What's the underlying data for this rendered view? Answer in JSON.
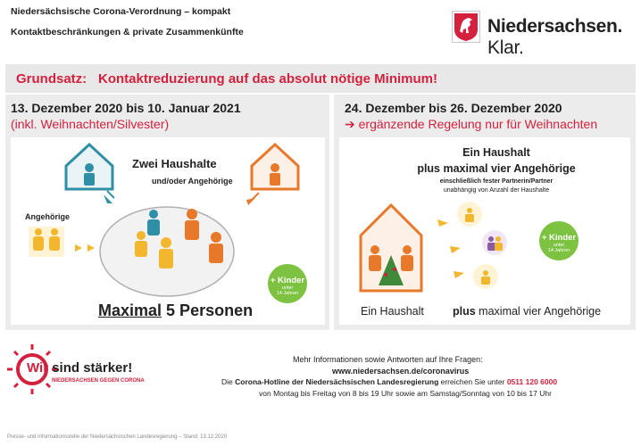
{
  "header": {
    "line1": "Niedersächsische Corona-Verordnung – kompakt",
    "line2": "Kontaktbeschränkungen & private Zusammenkünfte",
    "logo_main": "Niedersachsen.",
    "logo_sub": "Klar."
  },
  "grundsatz": {
    "label": "Grundsatz:",
    "text": "Kontaktreduzierung auf das absolut nötige Minimum!"
  },
  "left": {
    "title": "13. Dezember 2020 bis 10. Januar 2021",
    "subtitle": "(inkl. Weihnachten/Silvester)",
    "zwei": "Zwei Haushalte",
    "undoder": "und/oder Angehörige",
    "angehoerige": "Angehörige",
    "max_underlined": "Maximal",
    "max_rest": " 5 Personen",
    "kids": {
      "plus": "+ Kinder",
      "unter": "unter",
      "jahre": "14 Jahren"
    }
  },
  "right": {
    "title": "24. Dezember bis 26. Dezember 2020",
    "subtitle": "➔ ergänzende Regelung nur für Weihnachten",
    "ein_haushalt": "Ein Haushalt",
    "plus_vier": "plus maximal vier Angehörige",
    "einschl": "einschließlich fester Partnerin/Partner",
    "unabh": "unabhängig von Anzahl der Haushalte",
    "label_haushalt": "Ein Haushalt",
    "label_plus_bold": "plus",
    "label_plus_rest": " maximal vier Angehörige",
    "kids": {
      "plus": "+ Kinder",
      "unter": "unter",
      "jahre": "14 Jahren"
    }
  },
  "footer": {
    "l1": "Mehr Informationen sowie Antworten auf Ihre Fragen:",
    "l2": "www.niedersachsen.de/coronavirus",
    "l3_pre": "Die ",
    "l3_bold": "Corona-Hotline der Niedersächsischen Landesregierung",
    "l3_mid": " erreichen Sie unter ",
    "l3_phone": "0511 120 6000",
    "l4": "von Montag bis Freitag von 8 bis 19 Uhr sowie am Samstag/Sonntag von 10 bis 17 Uhr",
    "wir_w": "Wir",
    "wir_rest": " sind stärker!",
    "wir_sub": "NIEDERSACHSEN GEGEN CORONA",
    "small": "Presse- und Informationsstelle der Niedersächsischen Landesregierung – Stand: 13.12.2020"
  },
  "colors": {
    "accent": "#d4213d",
    "green": "#7ec242",
    "orange": "#e8782a",
    "yellow": "#f3b72e",
    "blue": "#2f8fa6"
  }
}
